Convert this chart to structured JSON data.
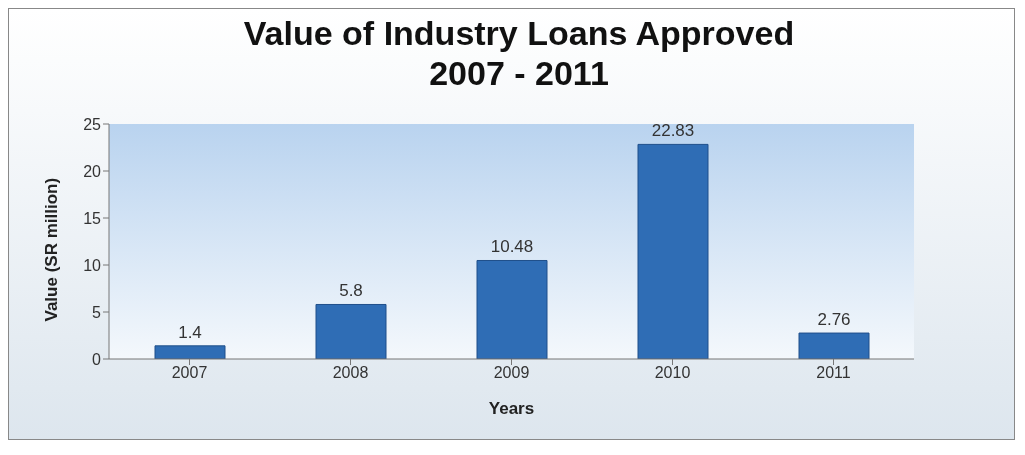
{
  "chart_data": {
    "type": "bar",
    "title": "Value of Industry Loans Approved 2007 - 2011",
    "xlabel": "Years",
    "ylabel": "Value (SR million)",
    "categories": [
      "2007",
      "2008",
      "2009",
      "2010",
      "2011"
    ],
    "values": [
      1.4,
      5.8,
      10.48,
      22.83,
      2.76
    ],
    "color": "#2f6db5",
    "ylim": [
      0,
      25
    ],
    "yticks": [
      0,
      5,
      10,
      15,
      20,
      25
    ],
    "grid": false,
    "data_labels": true
  }
}
